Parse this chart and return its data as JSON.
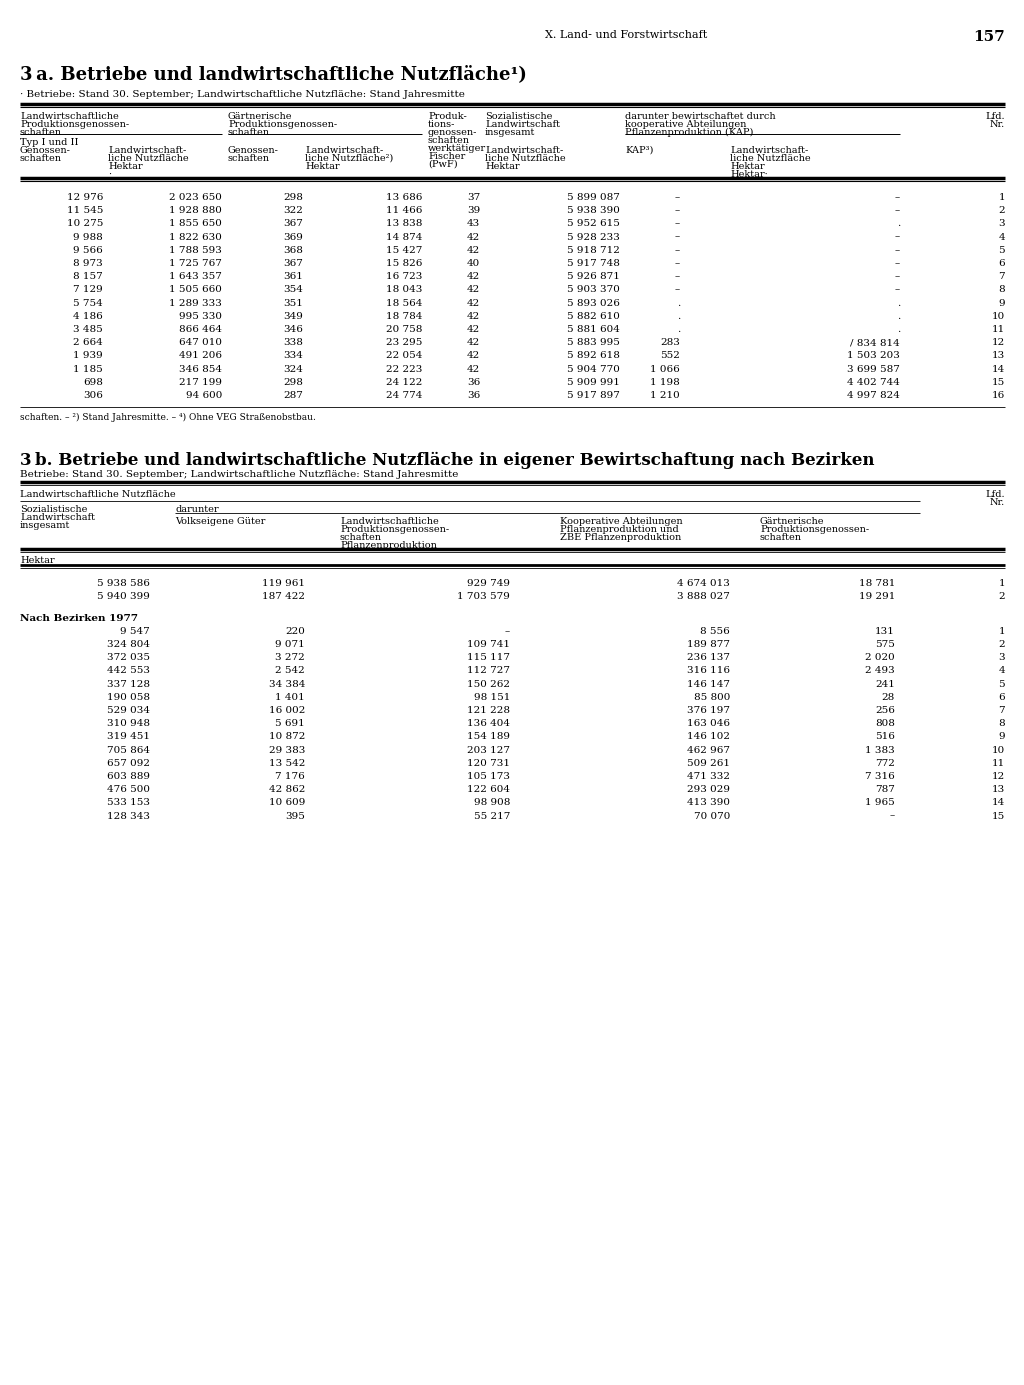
{
  "page_header": "X. Land- und Forstwirtschaft",
  "page_number": "157",
  "section_3a_title": "3 a. Betriebe und landwirtschaftliche Nutzfläche¹)",
  "section_3a_subtitle": "· Betriebe: Stand 30. September; Landwirtschaftliche Nutzfläche: Stand Jahresmitte",
  "section_3a_data": [
    [
      "12 976",
      "2 023 650",
      "298",
      "13 686",
      "37",
      "5 899 087",
      "–",
      "–",
      "1"
    ],
    [
      "11 545",
      "1 928 880",
      "322",
      "11 466",
      "39",
      "5 938 390",
      "–",
      "–",
      "2"
    ],
    [
      "10 275",
      "1 855 650",
      "367",
      "13 838",
      "43",
      "5 952 615",
      "–",
      ".",
      "3"
    ],
    [
      "9 988",
      "1 822 630",
      "369",
      "14 874",
      "42",
      "5 928 233",
      "–",
      "–",
      "4"
    ],
    [
      "9 566",
      "1 788 593",
      "368",
      "15 427",
      "42",
      "5 918 712",
      "–",
      "–",
      "5"
    ],
    [
      "8 973",
      "1 725 767",
      "367",
      "15 826",
      "40",
      "5 917 748",
      "–",
      "–",
      "6"
    ],
    [
      "8 157",
      "1 643 357",
      "361",
      "16 723",
      "42",
      "5 926 871",
      "–",
      "–",
      "7"
    ],
    [
      "7 129",
      "1 505 660",
      "354",
      "18 043",
      "42",
      "5 903 370",
      "–",
      "–",
      "8"
    ],
    [
      "5 754",
      "1 289 333",
      "351",
      "18 564",
      "42",
      "5 893 026",
      ".",
      ".",
      "9"
    ],
    [
      "4 186",
      "995 330",
      "349",
      "18 784",
      "42",
      "5 882 610",
      ".",
      ".",
      "10"
    ],
    [
      "3 485",
      "866 464",
      "346",
      "20 758",
      "42",
      "5 881 604",
      ".",
      ".",
      "11"
    ],
    [
      "2 664",
      "647 010",
      "338",
      "23 295",
      "42",
      "5 883 995",
      "283",
      "/ 834 814",
      "12"
    ],
    [
      "1 939",
      "491 206",
      "334",
      "22 054",
      "42",
      "5 892 618",
      "552",
      "1 503 203",
      "13"
    ],
    [
      "1 185",
      "346 854",
      "324",
      "22 223",
      "42",
      "5 904 770",
      "1 066",
      "3 699 587",
      "14"
    ],
    [
      "698",
      "217 199",
      "298",
      "24 122",
      "36",
      "5 909 991",
      "1 198",
      "4 402 744",
      "15"
    ],
    [
      "306",
      "94 600",
      "287",
      "24 774",
      "36",
      "5 917 897",
      "1 210",
      "4 997 824",
      "16"
    ]
  ],
  "section_3a_footnote": "schaften. – ²) Stand Jahresmitte. – ⁴) Ohne VEG Straßenobstbau.",
  "section_3b_title": "3 b. Betriebe und landwirtschaftliche Nutzfläche in eigener Bewirtschaftung nach Bezirken",
  "section_3b_subtitle": "Betriebe: Stand 30. September; Landwirtschaftliche Nutzfläche: Stand Jahresmitte",
  "section_3b_data": [
    [
      "5 938 586",
      "119 961",
      "929 749",
      "4 674 013",
      "18 781",
      "1"
    ],
    [
      "5 940 399",
      "187 422",
      "1 703 579",
      "3 888 027",
      "19 291",
      "2"
    ],
    [
      "9 547",
      "220",
      "–",
      "8 556",
      "131",
      "1"
    ],
    [
      "324 804",
      "9 071",
      "109 741",
      "189 877",
      "575",
      "2"
    ],
    [
      "372 035",
      "3 272",
      "115 117",
      "236 137",
      "2 020",
      "3"
    ],
    [
      "442 553",
      "2 542",
      "112 727",
      "316 116",
      "2 493",
      "4"
    ],
    [
      "337 128",
      "34 384",
      "150 262",
      "146 147",
      "241",
      "5"
    ],
    [
      "190 058",
      "1 401",
      "98 151",
      "85 800",
      "28",
      "6"
    ],
    [
      "529 034",
      "16 002",
      "121 228",
      "376 197",
      "256",
      "7"
    ],
    [
      "310 948",
      "5 691",
      "136 404",
      "163 046",
      "808",
      "8"
    ],
    [
      "319 451",
      "10 872",
      "154 189",
      "146 102",
      "516",
      "9"
    ],
    [
      "705 864",
      "29 383",
      "203 127",
      "462 967",
      "1 383",
      "10"
    ],
    [
      "657 092",
      "13 542",
      "120 731",
      "509 261",
      "772",
      "11"
    ],
    [
      "603 889",
      "7 176",
      "105 173",
      "471 332",
      "7 316",
      "12"
    ],
    [
      "476 500",
      "42 862",
      "122 604",
      "293 029",
      "787",
      "13"
    ],
    [
      "533 153",
      "10 609",
      "98 908",
      "413 390",
      "1 965",
      "14"
    ],
    [
      "128 343",
      "395",
      "55 217",
      "70 070",
      "–",
      "15"
    ]
  ],
  "bg_color": "#ffffff",
  "text_color": "#000000",
  "line_color": "#000000"
}
